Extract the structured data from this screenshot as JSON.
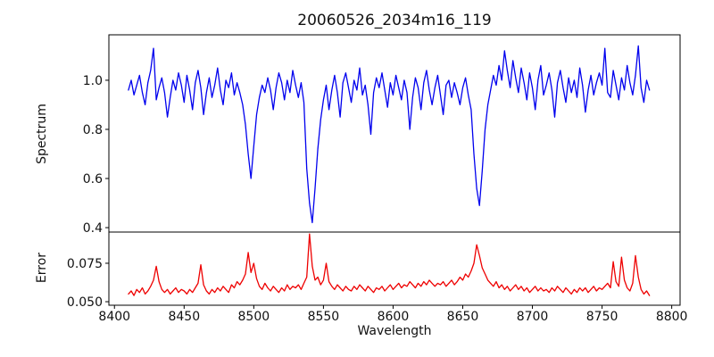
{
  "figure": {
    "background": "#ffffff"
  },
  "chart_data": {
    "type": "line",
    "title": "20060526_2034m16_119",
    "xlabel": "Wavelength",
    "x_start": 8410,
    "x_step": 2,
    "xlim": [
      8396,
      8806
    ],
    "xticks": [
      8400,
      8450,
      8500,
      8550,
      8600,
      8650,
      8700,
      8750,
      8800
    ],
    "xtick_labels": [
      "8400",
      "8450",
      "8500",
      "8550",
      "8600",
      "8650",
      "8700",
      "8750",
      "8800"
    ],
    "grid": false,
    "legend": "none",
    "panels": [
      {
        "name": "spectrum",
        "ylabel": "Spectrum",
        "color": "#0000ee",
        "ylim": [
          0.382,
          1.185
        ],
        "yticks": [
          0.4,
          0.6,
          0.8,
          1.0
        ],
        "ytick_labels": [
          "0.4",
          "0.6",
          "0.8",
          "1.0"
        ],
        "features": "absorption dips near 8498 (0.60), 8542 (0.42, deepest), 8662 (0.49); noisy continuum ~0.95-1.02",
        "values": [
          0.96,
          1.0,
          0.94,
          0.98,
          1.02,
          0.95,
          0.9,
          0.99,
          1.04,
          1.13,
          0.92,
          0.97,
          1.01,
          0.95,
          0.85,
          0.93,
          1.0,
          0.96,
          1.03,
          0.98,
          0.91,
          1.02,
          0.96,
          0.88,
          0.99,
          1.04,
          0.97,
          0.86,
          0.95,
          1.01,
          0.93,
          0.98,
          1.05,
          0.96,
          0.9,
          1.0,
          0.97,
          1.03,
          0.94,
          0.99,
          0.95,
          0.9,
          0.82,
          0.7,
          0.6,
          0.73,
          0.86,
          0.93,
          0.98,
          0.95,
          1.01,
          0.96,
          0.88,
          0.97,
          1.03,
          0.99,
          0.92,
          1.0,
          0.95,
          1.04,
          0.98,
          0.93,
          0.99,
          0.91,
          0.64,
          0.5,
          0.42,
          0.56,
          0.72,
          0.84,
          0.92,
          0.98,
          0.88,
          0.96,
          1.02,
          0.95,
          0.85,
          0.99,
          1.03,
          0.97,
          0.91,
          1.0,
          0.96,
          1.05,
          0.94,
          0.98,
          0.9,
          0.78,
          0.95,
          1.01,
          0.97,
          1.03,
          0.96,
          0.89,
          0.99,
          0.94,
          1.02,
          0.97,
          0.92,
          1.0,
          0.95,
          0.8,
          0.93,
          1.01,
          0.97,
          0.88,
          0.99,
          1.04,
          0.96,
          0.9,
          0.97,
          1.02,
          0.94,
          0.86,
          0.98,
          1.0,
          0.93,
          0.99,
          0.95,
          0.9,
          0.97,
          1.01,
          0.94,
          0.88,
          0.7,
          0.56,
          0.49,
          0.63,
          0.8,
          0.9,
          0.96,
          1.02,
          0.98,
          1.06,
          1.0,
          1.12,
          1.04,
          0.97,
          1.08,
          1.01,
          0.95,
          1.05,
          0.99,
          0.92,
          1.03,
          0.97,
          0.88,
          1.0,
          1.06,
          0.94,
          0.98,
          1.03,
          0.96,
          0.85,
          0.99,
          1.04,
          0.97,
          0.91,
          1.01,
          0.95,
          1.0,
          0.93,
          1.05,
          0.98,
          0.87,
          0.96,
          1.02,
          0.94,
          0.99,
          1.03,
          0.98,
          1.13,
          0.95,
          0.93,
          1.04,
          0.98,
          0.92,
          1.01,
          0.96,
          1.06,
          0.99,
          0.94,
          1.02,
          1.14,
          0.97,
          0.91,
          1.0,
          0.96
        ]
      },
      {
        "name": "error",
        "ylabel": "Error",
        "color": "#ee0000",
        "ylim": [
          0.0477,
          0.0953
        ],
        "yticks": [
          0.05,
          0.075
        ],
        "ytick_labels": [
          "0.050",
          "0.075"
        ],
        "features": "baseline ~0.057; spikes near 8430, 8462, 8496, 8540 (0.094, tallest), broad peak 8660 (0.087), spikes 8758/8764/8774",
        "values": [
          0.055,
          0.057,
          0.054,
          0.058,
          0.056,
          0.059,
          0.055,
          0.057,
          0.06,
          0.064,
          0.073,
          0.063,
          0.058,
          0.056,
          0.058,
          0.055,
          0.057,
          0.059,
          0.056,
          0.058,
          0.057,
          0.055,
          0.058,
          0.056,
          0.059,
          0.062,
          0.074,
          0.061,
          0.057,
          0.055,
          0.058,
          0.056,
          0.059,
          0.057,
          0.06,
          0.058,
          0.056,
          0.061,
          0.059,
          0.063,
          0.061,
          0.064,
          0.068,
          0.082,
          0.069,
          0.075,
          0.065,
          0.06,
          0.058,
          0.062,
          0.059,
          0.057,
          0.06,
          0.058,
          0.056,
          0.059,
          0.057,
          0.061,
          0.058,
          0.06,
          0.059,
          0.061,
          0.058,
          0.062,
          0.066,
          0.094,
          0.073,
          0.064,
          0.066,
          0.061,
          0.064,
          0.075,
          0.063,
          0.06,
          0.058,
          0.061,
          0.059,
          0.057,
          0.06,
          0.058,
          0.057,
          0.06,
          0.058,
          0.061,
          0.059,
          0.057,
          0.06,
          0.058,
          0.056,
          0.059,
          0.058,
          0.06,
          0.057,
          0.059,
          0.061,
          0.058,
          0.06,
          0.062,
          0.059,
          0.061,
          0.06,
          0.063,
          0.061,
          0.059,
          0.062,
          0.06,
          0.063,
          0.061,
          0.064,
          0.062,
          0.06,
          0.062,
          0.061,
          0.063,
          0.06,
          0.062,
          0.064,
          0.061,
          0.063,
          0.066,
          0.064,
          0.068,
          0.066,
          0.07,
          0.075,
          0.087,
          0.08,
          0.072,
          0.068,
          0.064,
          0.062,
          0.06,
          0.063,
          0.059,
          0.061,
          0.058,
          0.06,
          0.057,
          0.059,
          0.061,
          0.058,
          0.06,
          0.057,
          0.059,
          0.056,
          0.058,
          0.06,
          0.057,
          0.059,
          0.057,
          0.058,
          0.056,
          0.059,
          0.057,
          0.06,
          0.058,
          0.056,
          0.059,
          0.057,
          0.055,
          0.058,
          0.056,
          0.059,
          0.057,
          0.059,
          0.056,
          0.058,
          0.06,
          0.057,
          0.059,
          0.058,
          0.06,
          0.062,
          0.059,
          0.076,
          0.063,
          0.06,
          0.079,
          0.064,
          0.059,
          0.057,
          0.062,
          0.08,
          0.066,
          0.058,
          0.055,
          0.057,
          0.054
        ]
      }
    ]
  }
}
